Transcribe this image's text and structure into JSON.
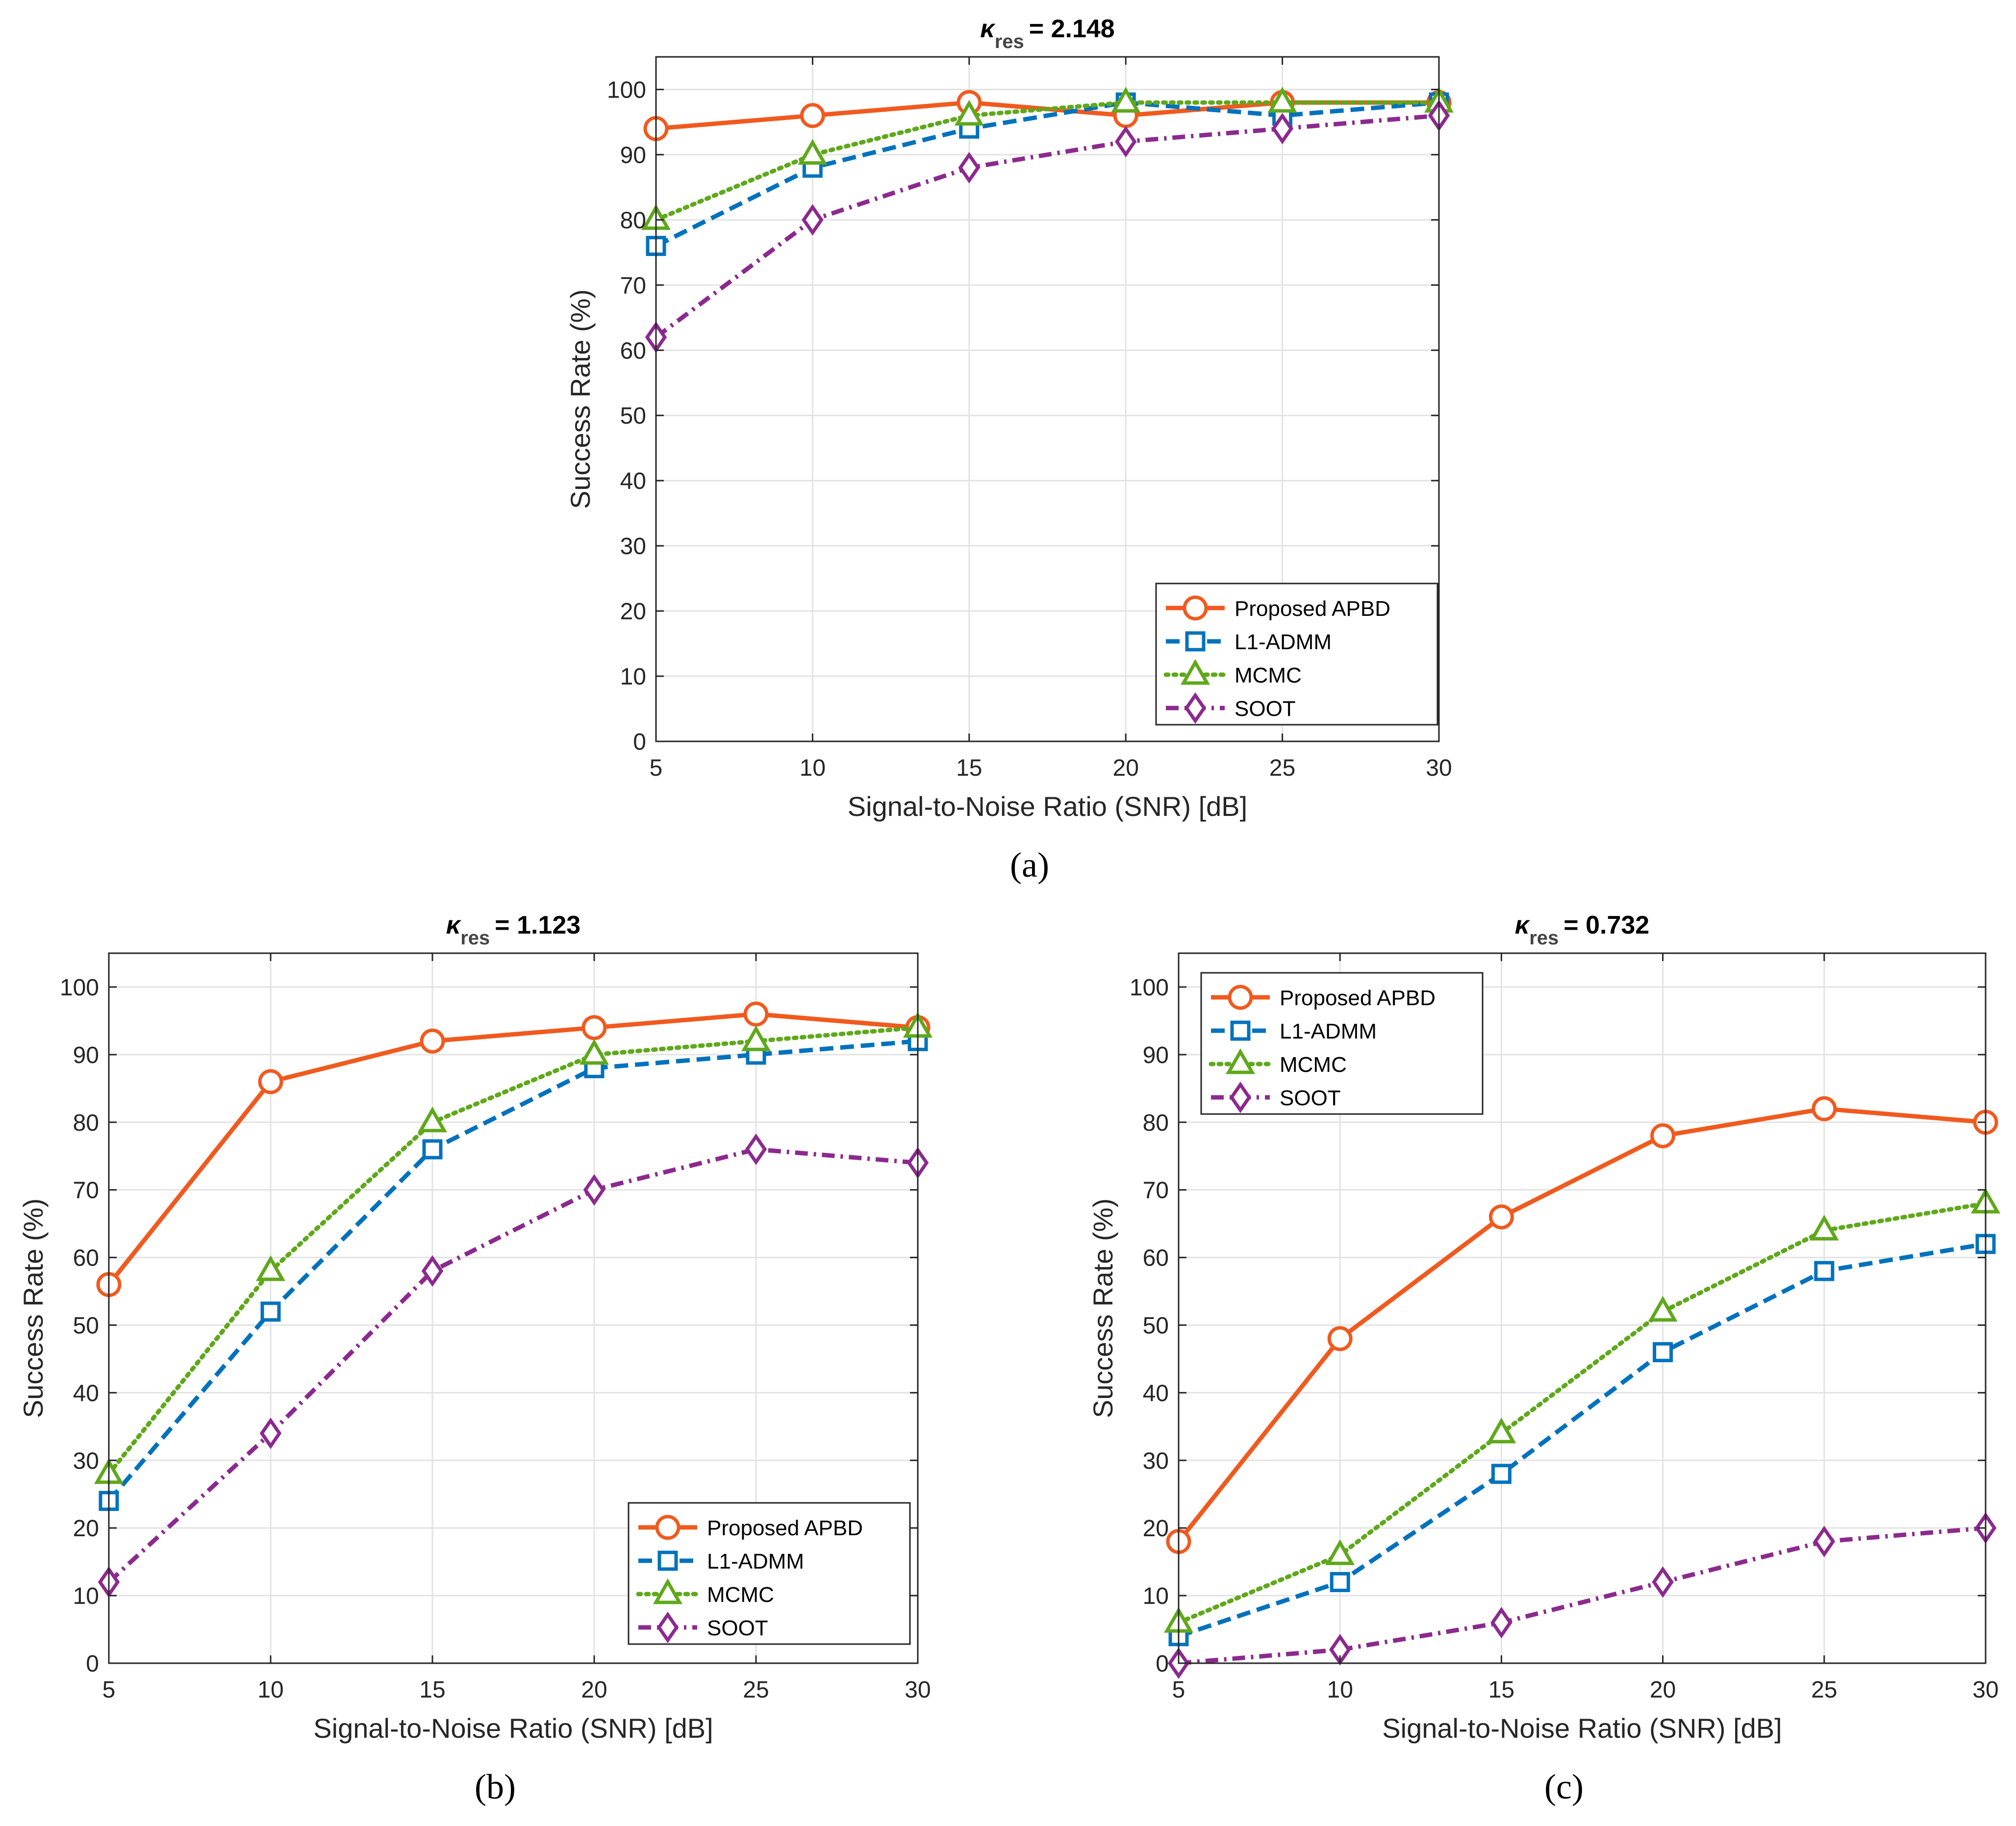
{
  "chart_data": [
    {
      "type": "line",
      "panel": "(a)",
      "title": {
        "kappa": "κ",
        "sub": "res",
        "value": "= 2.148"
      },
      "x": [
        5,
        10,
        15,
        20,
        25,
        30
      ],
      "xlim": [
        5,
        30
      ],
      "ylim": [
        0,
        105
      ],
      "xticks": [
        5,
        10,
        15,
        20,
        25,
        30
      ],
      "yticks": [
        0,
        10,
        20,
        30,
        40,
        50,
        60,
        70,
        80,
        90,
        100
      ],
      "xlabel": "Signal-to-Noise Ratio (SNR) [dB]",
      "ylabel": "Success Rate (%)",
      "grid": true,
      "legend_position": "bottom-right",
      "series": [
        {
          "name": "Proposed APBD",
          "values": [
            94,
            96,
            98,
            96,
            98,
            98
          ]
        },
        {
          "name": "L1-ADMM",
          "values": [
            76,
            88,
            94,
            98,
            96,
            98
          ]
        },
        {
          "name": "MCMC",
          "values": [
            80,
            90,
            96,
            98,
            98,
            98
          ]
        },
        {
          "name": "SOOT",
          "values": [
            62,
            80,
            88,
            92,
            94,
            96
          ]
        }
      ]
    },
    {
      "type": "line",
      "panel": "(b)",
      "title": {
        "kappa": "κ",
        "sub": "res",
        "value": "= 1.123"
      },
      "x": [
        5,
        10,
        15,
        20,
        25,
        30
      ],
      "xlim": [
        5,
        30
      ],
      "ylim": [
        0,
        105
      ],
      "xticks": [
        5,
        10,
        15,
        20,
        25,
        30
      ],
      "yticks": [
        0,
        10,
        20,
        30,
        40,
        50,
        60,
        70,
        80,
        90,
        100
      ],
      "xlabel": "Signal-to-Noise Ratio (SNR) [dB]",
      "ylabel": "Success Rate (%)",
      "grid": true,
      "legend_position": "bottom-right",
      "series": [
        {
          "name": "Proposed APBD",
          "values": [
            56,
            86,
            92,
            94,
            96,
            94
          ]
        },
        {
          "name": "L1-ADMM",
          "values": [
            24,
            52,
            76,
            88,
            90,
            92
          ]
        },
        {
          "name": "MCMC",
          "values": [
            28,
            58,
            80,
            90,
            92,
            94
          ]
        },
        {
          "name": "SOOT",
          "values": [
            12,
            34,
            58,
            70,
            76,
            74
          ]
        }
      ]
    },
    {
      "type": "line",
      "panel": "(c)",
      "title": {
        "kappa": "κ",
        "sub": "res",
        "value": "= 0.732"
      },
      "x": [
        5,
        10,
        15,
        20,
        25,
        30
      ],
      "xlim": [
        5,
        30
      ],
      "ylim": [
        0,
        105
      ],
      "xticks": [
        5,
        10,
        15,
        20,
        25,
        30
      ],
      "yticks": [
        0,
        10,
        20,
        30,
        40,
        50,
        60,
        70,
        80,
        90,
        100
      ],
      "xlabel": "Signal-to-Noise Ratio (SNR) [dB]",
      "ylabel": "Success Rate (%)",
      "grid": true,
      "legend_position": "top-left",
      "series": [
        {
          "name": "Proposed APBD",
          "values": [
            18,
            48,
            66,
            78,
            82,
            80
          ]
        },
        {
          "name": "L1-ADMM",
          "values": [
            4,
            12,
            28,
            46,
            58,
            62
          ]
        },
        {
          "name": "MCMC",
          "values": [
            6,
            16,
            34,
            52,
            64,
            68
          ]
        },
        {
          "name": "SOOT",
          "values": [
            0,
            2,
            6,
            12,
            18,
            20
          ]
        }
      ]
    }
  ],
  "styles": {
    "series_colors": [
      "#F05A1E",
      "#0072BD",
      "#5FA81B",
      "#8B2A8E"
    ],
    "title_sub_color": "#444444",
    "grid_color": "#E3E3E3",
    "axis_color": "#262626"
  },
  "captions": [
    "(a)",
    "(b)",
    "(c)"
  ]
}
